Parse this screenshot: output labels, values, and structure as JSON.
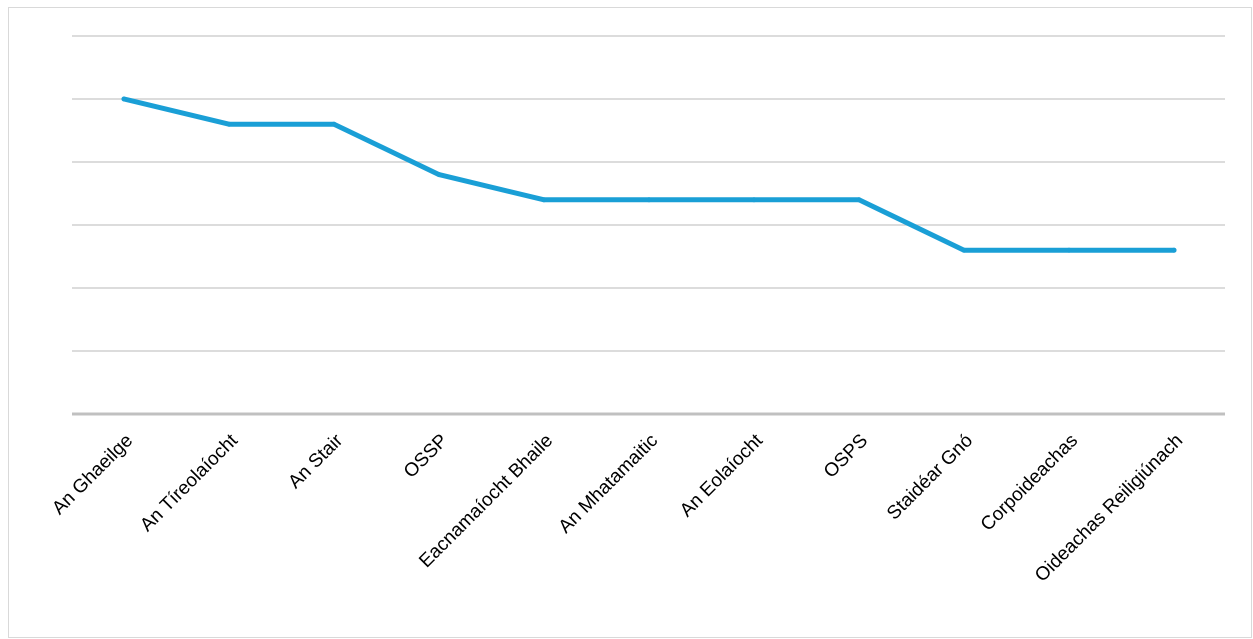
{
  "chart_data": {
    "type": "line",
    "title": "",
    "xlabel": "",
    "ylabel": "",
    "categories": [
      "An Ghaeilge",
      "An Tíreolaíocht",
      "An Stair",
      "OSSP",
      "Eacnamaíocht Bhaile",
      "An Mhatamaitic",
      "An Eolaíocht",
      "OSPS",
      "Staidéar Gnó",
      "Corpoideachas",
      "Oideachas Reiligiúnach"
    ],
    "series": [
      {
        "values": [
          5,
          4.6,
          4.6,
          3.8,
          3.4,
          3.4,
          3.4,
          3.4,
          2.6,
          2.6,
          2.6
        ]
      }
    ],
    "ylim": [
      0,
      6
    ],
    "y_gridlines": [
      0,
      1,
      2,
      3,
      4,
      5,
      6
    ],
    "y_tick_labels_visible": false,
    "grid": true,
    "legend": "none",
    "colors": {
      "line": "#1a9fd6",
      "gridline": "#d0d0d0",
      "axis": "#c0c0c0"
    }
  }
}
